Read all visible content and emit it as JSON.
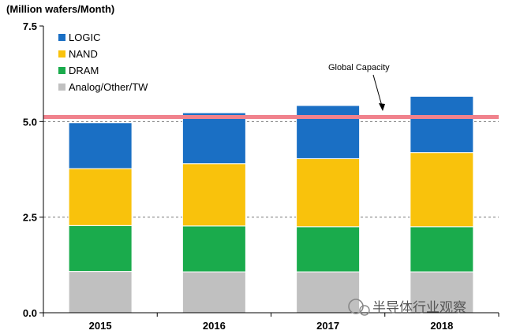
{
  "chart_data": {
    "type": "bar",
    "stacked": true,
    "ylabel": "(Million wafers/Month)",
    "ylim": [
      0,
      7.5
    ],
    "yticks": [
      "0.0",
      "2.5",
      "5.0",
      "7.5"
    ],
    "categories": [
      "2015",
      "2016",
      "2017",
      "2018"
    ],
    "series": [
      {
        "name": "Analog/Other/TW",
        "color": "#c0c0c0",
        "values": [
          1.08,
          1.07,
          1.07,
          1.07
        ]
      },
      {
        "name": "DRAM",
        "color": "#1aab4c",
        "values": [
          1.2,
          1.2,
          1.18,
          1.18
        ]
      },
      {
        "name": "NAND",
        "color": "#f9c20c",
        "values": [
          1.49,
          1.63,
          1.78,
          1.94
        ]
      },
      {
        "name": "LOGIC",
        "color": "#1a6fc4",
        "values": [
          1.2,
          1.33,
          1.39,
          1.47
        ]
      }
    ],
    "reference_line": {
      "label": "Global Capacity",
      "value": 5.12,
      "color": "#f0828c"
    },
    "gridlines": [
      2.5,
      5.0
    ]
  },
  "watermark": {
    "text": "半导体行业观察"
  }
}
